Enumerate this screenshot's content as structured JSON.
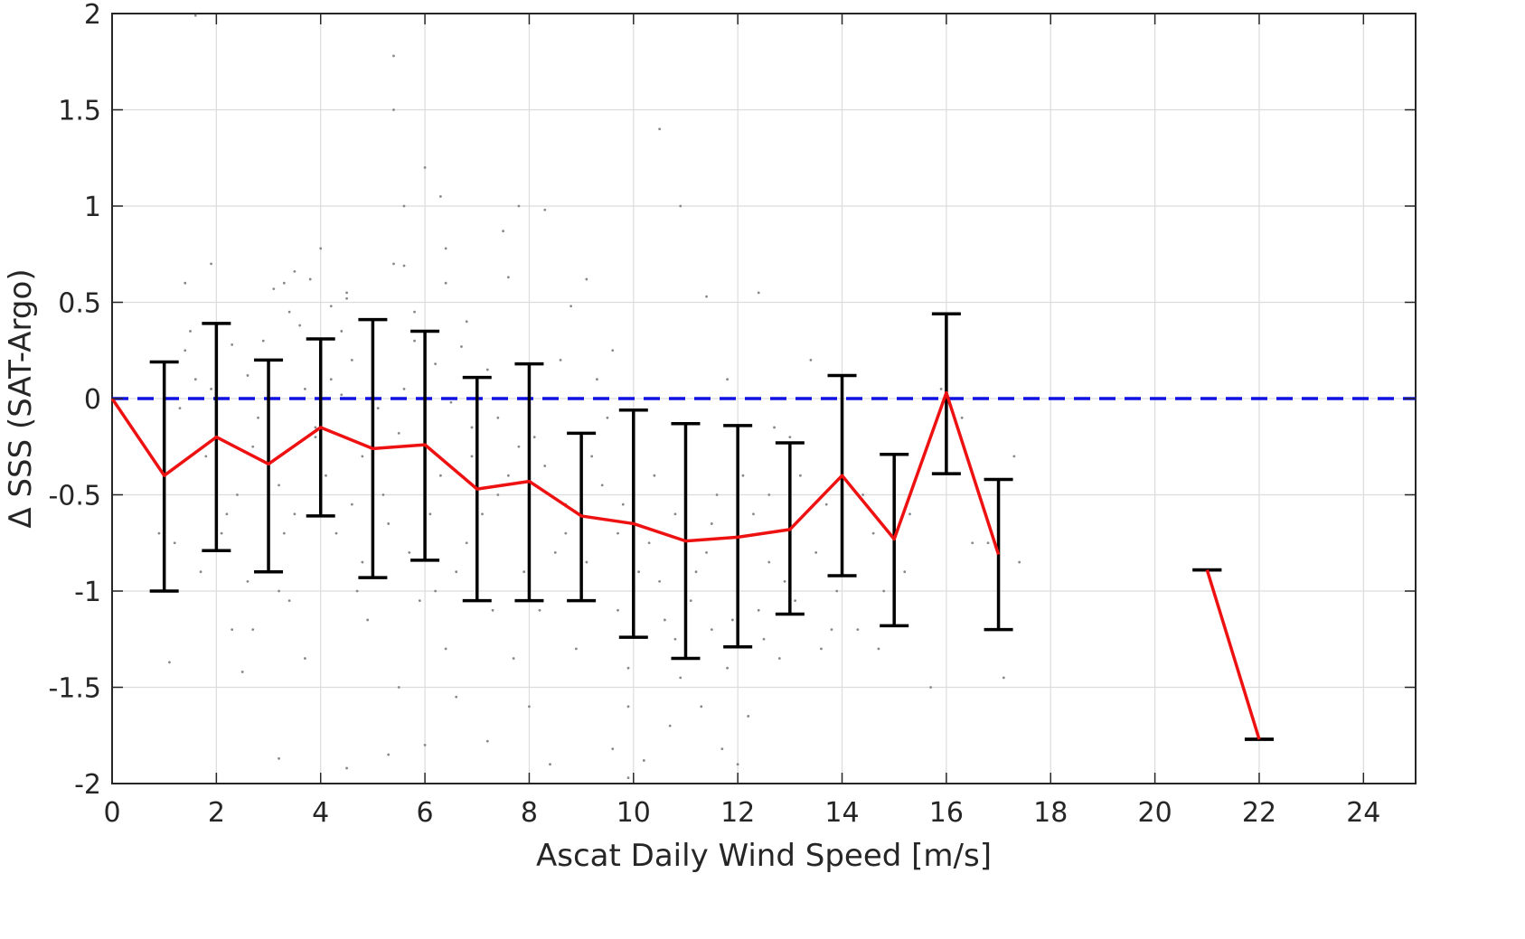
{
  "chart_data": {
    "type": "line",
    "xlabel": "Ascat Daily Wind Speed [m/s]",
    "ylabel": "Δ SSS (SAT-Argo)",
    "xlim": [
      0,
      25
    ],
    "ylim": [
      -2,
      2
    ],
    "x_ticks": [
      0,
      2,
      4,
      6,
      8,
      10,
      12,
      14,
      16,
      18,
      20,
      22,
      24
    ],
    "x_tick_labels": [
      "0",
      "2",
      "4",
      "6",
      "8",
      "10",
      "12",
      "14",
      "16",
      "18",
      "20",
      "22",
      "24"
    ],
    "y_ticks": [
      -2,
      -1.5,
      -1,
      -0.5,
      0,
      0.5,
      1,
      1.5,
      2
    ],
    "y_tick_labels": [
      "-2",
      "-1.5",
      "-1",
      "-0.5",
      "0",
      "0.5",
      "1",
      "1.5",
      "2"
    ],
    "grid": true,
    "reference_line": {
      "y": 0,
      "style": "dashed",
      "color": "#1010e0"
    },
    "mean_line": {
      "color": "#ee1111",
      "segments": [
        [
          {
            "x": 0,
            "y": 0.0
          },
          {
            "x": 1,
            "y": -0.4
          },
          {
            "x": 2,
            "y": -0.2
          },
          {
            "x": 3,
            "y": -0.34
          },
          {
            "x": 4,
            "y": -0.15
          },
          {
            "x": 5,
            "y": -0.26
          },
          {
            "x": 6,
            "y": -0.24
          },
          {
            "x": 7,
            "y": -0.47
          },
          {
            "x": 8,
            "y": -0.43
          },
          {
            "x": 9,
            "y": -0.61
          },
          {
            "x": 10,
            "y": -0.65
          },
          {
            "x": 11,
            "y": -0.74
          },
          {
            "x": 12,
            "y": -0.72
          },
          {
            "x": 13,
            "y": -0.68
          },
          {
            "x": 14,
            "y": -0.4
          },
          {
            "x": 15,
            "y": -0.73
          },
          {
            "x": 16,
            "y": 0.03
          },
          {
            "x": 17,
            "y": -0.81
          }
        ],
        [
          {
            "x": 21,
            "y": -0.89
          },
          {
            "x": 22,
            "y": -1.77
          }
        ]
      ]
    },
    "error_bars": {
      "color": "#000000",
      "items": [
        {
          "x": 1,
          "low": -1.0,
          "high": 0.19
        },
        {
          "x": 2,
          "low": -0.79,
          "high": 0.39
        },
        {
          "x": 3,
          "low": -0.9,
          "high": 0.2
        },
        {
          "x": 4,
          "low": -0.61,
          "high": 0.31
        },
        {
          "x": 5,
          "low": -0.93,
          "high": 0.41
        },
        {
          "x": 6,
          "low": -0.84,
          "high": 0.35
        },
        {
          "x": 7,
          "low": -1.05,
          "high": 0.11
        },
        {
          "x": 8,
          "low": -1.05,
          "high": 0.18
        },
        {
          "x": 9,
          "low": -1.05,
          "high": -0.18
        },
        {
          "x": 10,
          "low": -1.24,
          "high": -0.06
        },
        {
          "x": 11,
          "low": -1.35,
          "high": -0.13
        },
        {
          "x": 12,
          "low": -1.29,
          "high": -0.14
        },
        {
          "x": 13,
          "low": -1.12,
          "high": -0.23
        },
        {
          "x": 14,
          "low": -0.92,
          "high": 0.12
        },
        {
          "x": 15,
          "low": -1.18,
          "high": -0.29
        },
        {
          "x": 16,
          "low": -0.39,
          "high": 0.44
        },
        {
          "x": 17,
          "low": -1.2,
          "high": -0.42
        },
        {
          "x": 21,
          "low": -0.89,
          "high": -0.89
        },
        {
          "x": 22,
          "low": -1.77,
          "high": -1.77
        }
      ]
    },
    "scatter": {
      "color": "#888888",
      "points": [
        [
          1.6,
          1.99
        ],
        [
          5.4,
          1.78
        ],
        [
          5.4,
          1.5
        ],
        [
          10.5,
          1.4
        ],
        [
          6.0,
          1.2
        ],
        [
          6.3,
          1.05
        ],
        [
          7.8,
          1.0
        ],
        [
          8.3,
          0.98
        ],
        [
          10.9,
          1.0
        ],
        [
          5.6,
          1.0
        ],
        [
          7.5,
          0.87
        ],
        [
          6.4,
          0.78
        ],
        [
          4.0,
          0.78
        ],
        [
          1.9,
          0.7
        ],
        [
          5.4,
          0.7
        ],
        [
          5.6,
          0.69
        ],
        [
          3.5,
          0.66
        ],
        [
          3.8,
          0.62
        ],
        [
          3.3,
          0.6
        ],
        [
          1.4,
          0.6
        ],
        [
          3.1,
          0.57
        ],
        [
          6.4,
          0.6
        ],
        [
          7.6,
          0.63
        ],
        [
          9.1,
          0.62
        ],
        [
          4.5,
          0.55
        ],
        [
          4.5,
          0.52
        ],
        [
          12.4,
          0.55
        ],
        [
          11.4,
          0.53
        ],
        [
          4.2,
          0.48
        ],
        [
          6.8,
          0.4
        ],
        [
          8.8,
          0.48
        ],
        [
          3.4,
          0.45
        ],
        [
          5.0,
          0.38
        ],
        [
          5.8,
          0.3
        ],
        [
          2.3,
          0.28
        ],
        [
          9.6,
          0.25
        ],
        [
          1.4,
          0.25
        ],
        [
          4.6,
          0.2
        ],
        [
          6.2,
          0.18
        ],
        [
          7.2,
          0.15
        ],
        [
          1.6,
          0.1
        ],
        [
          2.6,
          0.12
        ],
        [
          3.7,
          0.05
        ],
        [
          4.4,
          0.02
        ],
        [
          5.1,
          -0.05
        ],
        [
          6.5,
          -0.02
        ],
        [
          7.4,
          -0.1
        ],
        [
          8.1,
          -0.2
        ],
        [
          9.5,
          -0.1
        ],
        [
          1.3,
          -0.05
        ],
        [
          2.8,
          -0.1
        ],
        [
          3.9,
          -0.2
        ],
        [
          4.8,
          -0.3
        ],
        [
          5.5,
          -0.18
        ],
        [
          6.9,
          -0.3
        ],
        [
          7.6,
          -0.4
        ],
        [
          8.4,
          -0.5
        ],
        [
          9.2,
          -0.3
        ],
        [
          1.8,
          -0.3
        ],
        [
          2.4,
          -0.5
        ],
        [
          3.2,
          -0.45
        ],
        [
          4.1,
          -0.4
        ],
        [
          5.2,
          -0.5
        ],
        [
          6.1,
          -0.6
        ],
        [
          7.1,
          -0.6
        ],
        [
          8.7,
          -0.7
        ],
        [
          9.8,
          -0.55
        ],
        [
          10.4,
          -0.4
        ],
        [
          10.8,
          -0.6
        ],
        [
          11.6,
          -0.5
        ],
        [
          12.3,
          -0.6
        ],
        [
          13.2,
          -0.4
        ],
        [
          14.4,
          -0.5
        ],
        [
          15.3,
          -0.6
        ],
        [
          16.5,
          -0.75
        ],
        [
          17.3,
          -0.3
        ],
        [
          2.1,
          -0.7
        ],
        [
          3.0,
          -0.8
        ],
        [
          4.3,
          -0.7
        ],
        [
          5.7,
          -0.8
        ],
        [
          6.6,
          -0.9
        ],
        [
          7.9,
          -0.9
        ],
        [
          9.0,
          -0.95
        ],
        [
          10.1,
          -0.9
        ],
        [
          11.2,
          -0.9
        ],
        [
          12.6,
          -0.85
        ],
        [
          13.5,
          -0.8
        ],
        [
          14.6,
          -0.7
        ],
        [
          2.6,
          -0.95
        ],
        [
          3.4,
          -1.05
        ],
        [
          4.7,
          -1.0
        ],
        [
          5.9,
          -1.05
        ],
        [
          7.3,
          -1.1
        ],
        [
          8.2,
          -1.1
        ],
        [
          9.7,
          -1.1
        ],
        [
          10.6,
          -1.15
        ],
        [
          11.5,
          -1.2
        ],
        [
          12.5,
          -1.25
        ],
        [
          13.8,
          -1.2
        ],
        [
          2.3,
          -1.2
        ],
        [
          2.7,
          -1.2
        ],
        [
          3.2,
          -1.0
        ],
        [
          4.9,
          -1.15
        ],
        [
          6.4,
          -1.3
        ],
        [
          7.7,
          -1.35
        ],
        [
          8.9,
          -1.3
        ],
        [
          9.9,
          -1.4
        ],
        [
          10.9,
          -1.45
        ],
        [
          11.8,
          -1.4
        ],
        [
          12.8,
          -1.35
        ],
        [
          13.6,
          -1.3
        ],
        [
          14.7,
          -1.3
        ],
        [
          1.1,
          -1.37
        ],
        [
          2.5,
          -1.42
        ],
        [
          3.7,
          -1.35
        ],
        [
          5.5,
          -1.5
        ],
        [
          6.6,
          -1.55
        ],
        [
          8.0,
          -1.6
        ],
        [
          9.9,
          -1.6
        ],
        [
          10.7,
          -1.7
        ],
        [
          11.3,
          -1.6
        ],
        [
          12.2,
          -1.65
        ],
        [
          15.7,
          -1.5
        ],
        [
          17.1,
          -1.45
        ],
        [
          3.2,
          -1.87
        ],
        [
          4.5,
          -1.92
        ],
        [
          5.3,
          -1.85
        ],
        [
          6.0,
          -1.8
        ],
        [
          7.2,
          -1.78
        ],
        [
          8.4,
          -1.9
        ],
        [
          9.6,
          -1.82
        ],
        [
          10.2,
          -1.88
        ],
        [
          11.7,
          -1.82
        ],
        [
          12.0,
          -1.9
        ],
        [
          9.9,
          -1.97
        ],
        [
          16.8,
          -0.75
        ],
        [
          15.9,
          0.05
        ],
        [
          14.2,
          0.0
        ],
        [
          13.0,
          -0.2
        ],
        [
          12.7,
          -0.15
        ],
        [
          13.4,
          0.2
        ],
        [
          11.8,
          0.1
        ],
        [
          10.7,
          0.0
        ],
        [
          0.9,
          -0.7
        ],
        [
          1.2,
          -0.75
        ],
        [
          14.8,
          -1.0
        ],
        [
          14.3,
          -1.2
        ],
        [
          15.2,
          -0.9
        ],
        [
          5.8,
          0.45
        ],
        [
          4.4,
          0.35
        ],
        [
          6.7,
          0.27
        ],
        [
          8.6,
          0.2
        ],
        [
          9.3,
          0.1
        ],
        [
          1.5,
          0.35
        ],
        [
          2.9,
          0.3
        ],
        [
          3.6,
          0.38
        ],
        [
          5.0,
          0.15
        ],
        [
          7.0,
          0.05
        ],
        [
          8.9,
          0.0
        ],
        [
          10.0,
          -0.25
        ],
        [
          11.0,
          -0.3
        ],
        [
          12.1,
          -0.4
        ],
        [
          6.3,
          -0.4
        ],
        [
          7.8,
          -0.25
        ],
        [
          9.4,
          -0.45
        ],
        [
          10.3,
          -0.75
        ],
        [
          11.4,
          -0.8
        ],
        [
          12.9,
          -0.95
        ],
        [
          13.9,
          -1.0
        ],
        [
          1.7,
          -0.9
        ],
        [
          2.2,
          -0.6
        ],
        [
          3.5,
          -0.6
        ],
        [
          4.6,
          -0.55
        ],
        [
          5.3,
          -0.65
        ],
        [
          6.8,
          -0.75
        ],
        [
          8.5,
          -0.8
        ],
        [
          9.1,
          -0.85
        ],
        [
          10.5,
          -0.95
        ],
        [
          11.1,
          -1.05
        ],
        [
          12.4,
          -1.1
        ],
        [
          3.9,
          -0.15
        ],
        [
          4.2,
          0.1
        ],
        [
          5.6,
          0.05
        ],
        [
          6.9,
          -0.15
        ],
        [
          8.3,
          -0.35
        ],
        [
          9.7,
          -0.7
        ],
        [
          10.8,
          -1.25
        ],
        [
          11.9,
          -1.15
        ],
        [
          13.1,
          -1.05
        ],
        [
          7.4,
          -0.5
        ],
        [
          8.7,
          -0.55
        ],
        [
          6.2,
          -1.0
        ],
        [
          4.8,
          -0.85
        ],
        [
          3.3,
          -0.7
        ],
        [
          2.7,
          -0.25
        ],
        [
          1.9,
          0.05
        ],
        [
          2.0,
          -0.45
        ],
        [
          14.0,
          -0.3
        ],
        [
          13.7,
          -0.55
        ],
        [
          12.6,
          -0.5
        ],
        [
          11.5,
          -0.65
        ],
        [
          15.0,
          -0.45
        ],
        [
          16.3,
          -0.1
        ],
        [
          17.4,
          -0.85
        ]
      ]
    }
  }
}
